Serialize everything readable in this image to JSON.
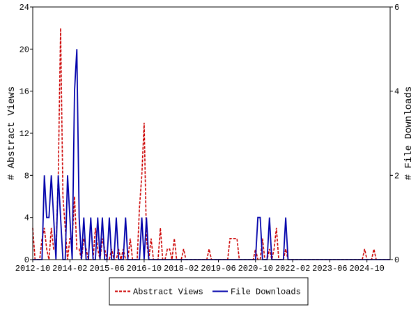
{
  "chart_data": {
    "type": "line",
    "x": [
      "2012-10",
      "2012-11",
      "2012-12",
      "2013-01",
      "2013-02",
      "2013-03",
      "2013-04",
      "2013-05",
      "2013-06",
      "2013-07",
      "2013-08",
      "2013-09",
      "2013-10",
      "2013-11",
      "2013-12",
      "2014-01",
      "2014-02",
      "2014-03",
      "2014-04",
      "2014-05",
      "2014-06",
      "2014-07",
      "2014-08",
      "2014-09",
      "2014-10",
      "2014-11",
      "2014-12",
      "2015-01",
      "2015-02",
      "2015-03",
      "2015-04",
      "2015-05",
      "2015-06",
      "2015-07",
      "2015-08",
      "2015-09",
      "2015-10",
      "2015-11",
      "2015-12",
      "2016-01",
      "2016-02",
      "2016-03",
      "2016-04",
      "2016-05",
      "2016-06",
      "2016-07",
      "2016-08",
      "2016-09",
      "2016-10",
      "2016-11",
      "2016-12",
      "2017-01",
      "2017-02",
      "2017-03",
      "2017-04",
      "2017-05",
      "2017-06",
      "2017-07",
      "2017-08",
      "2017-09",
      "2017-10",
      "2017-11",
      "2017-12",
      "2018-01",
      "2018-02",
      "2018-03",
      "2018-04",
      "2018-05",
      "2018-06",
      "2018-07",
      "2018-08",
      "2018-09",
      "2018-10",
      "2018-11",
      "2018-12",
      "2019-01",
      "2019-02",
      "2019-03",
      "2019-04",
      "2019-05",
      "2019-06",
      "2019-07",
      "2019-08",
      "2019-09",
      "2019-10",
      "2019-11",
      "2019-12",
      "2020-01",
      "2020-02",
      "2020-03",
      "2020-04",
      "2020-05",
      "2020-06",
      "2020-07",
      "2020-08",
      "2020-09",
      "2020-10",
      "2020-11",
      "2020-12",
      "2021-01",
      "2021-02",
      "2021-03",
      "2021-04",
      "2021-05",
      "2021-06",
      "2021-07",
      "2021-08",
      "2021-09",
      "2021-10",
      "2021-11",
      "2021-12",
      "2022-01",
      "2022-02",
      "2022-03",
      "2022-04",
      "2022-05",
      "2022-06",
      "2022-07",
      "2022-08",
      "2022-09",
      "2022-10",
      "2022-11",
      "2022-12",
      "2023-01",
      "2023-02",
      "2023-03",
      "2023-04",
      "2023-05",
      "2023-06",
      "2023-07",
      "2023-08",
      "2023-09",
      "2023-10",
      "2023-11",
      "2023-12",
      "2024-01",
      "2024-02",
      "2024-03",
      "2024-04",
      "2024-05",
      "2024-06",
      "2024-07",
      "2024-08",
      "2024-09",
      "2024-10",
      "2024-11",
      "2024-12",
      "2025-01",
      "2025-02",
      "2025-03",
      "2025-04",
      "2025-05",
      "2025-06",
      "2025-07",
      "2025-08"
    ],
    "xticks": [
      "2012-10",
      "2014-02",
      "2015-06",
      "2016-10",
      "2018-02",
      "2019-06",
      "2020-10",
      "2022-02",
      "2023-06",
      "2024-10"
    ],
    "ylabel": "# Abstract Views",
    "y2label": "# File Downloads",
    "ylim": [
      0,
      24
    ],
    "yticks": [
      0,
      4,
      8,
      12,
      16,
      20,
      24
    ],
    "y2lim": [
      0,
      6
    ],
    "y2ticks": [
      0,
      2,
      4,
      6
    ],
    "grid": false,
    "legend": "bottom",
    "series": [
      {
        "name": "Abstract Views",
        "color": "#cc0000",
        "dash": true,
        "values": [
          3,
          0,
          0,
          0,
          2,
          3,
          1,
          0,
          3,
          1,
          1,
          8,
          22,
          6,
          3,
          0,
          2,
          2,
          6,
          1,
          1,
          0,
          2,
          1,
          0,
          0,
          0,
          3,
          1,
          0,
          2,
          1,
          0,
          0,
          1,
          0,
          0,
          1,
          0,
          1,
          0,
          0,
          2,
          0,
          0,
          0,
          5,
          8,
          13,
          2,
          0,
          2,
          0,
          0,
          0,
          3,
          0,
          0,
          1,
          1,
          0,
          2,
          0,
          0,
          0,
          1,
          0,
          0,
          0,
          0,
          0,
          0,
          0,
          0,
          0,
          0,
          1,
          0,
          0,
          0,
          0,
          0,
          0,
          0,
          0,
          2,
          2,
          2,
          2,
          0,
          0,
          0,
          0,
          0,
          0,
          0,
          1,
          0,
          0,
          2,
          0,
          0,
          1,
          0,
          1,
          3,
          0,
          0,
          0,
          1,
          0,
          0,
          0,
          0,
          0,
          0,
          0,
          0,
          0,
          0,
          0,
          0,
          0,
          0,
          0,
          0,
          0,
          0,
          0,
          0,
          0,
          0,
          0,
          0,
          0,
          0,
          0,
          0,
          0,
          0,
          0,
          0,
          0,
          1,
          0,
          0,
          0,
          1,
          0,
          0,
          0,
          0,
          0,
          0,
          0
        ]
      },
      {
        "name": "File Downloads",
        "color": "#0000aa",
        "axis": "y2",
        "dash": false,
        "values": [
          0,
          0,
          0,
          0,
          0,
          2,
          1,
          1,
          2,
          1,
          0,
          2,
          1,
          0,
          0,
          2,
          1,
          0,
          4,
          5,
          1,
          0,
          1,
          0,
          0,
          1,
          0,
          0,
          1,
          0,
          1,
          0,
          0,
          1,
          0,
          0,
          1,
          0,
          0,
          0,
          1,
          0,
          0,
          0,
          0,
          0,
          0,
          1,
          0,
          1,
          0,
          0,
          0,
          0,
          0,
          0,
          0,
          0,
          0,
          0,
          0,
          0,
          0,
          0,
          0,
          0,
          0,
          0,
          0,
          0,
          0,
          0,
          0,
          0,
          0,
          0,
          0,
          0,
          0,
          0,
          0,
          0,
          0,
          0,
          0,
          0,
          0,
          0,
          0,
          0,
          0,
          0,
          0,
          0,
          0,
          0,
          0,
          1,
          1,
          0,
          0,
          0,
          1,
          0,
          0,
          0,
          0,
          0,
          0,
          1,
          0,
          0,
          0,
          0,
          0,
          0,
          0,
          0,
          0,
          0,
          0,
          0,
          0,
          0,
          0,
          0,
          0,
          0,
          0,
          0,
          0,
          0,
          0,
          0,
          0,
          0,
          0,
          0,
          0,
          0,
          0,
          0,
          0,
          0,
          0,
          0,
          0,
          0,
          0,
          0,
          0,
          0,
          0,
          0,
          0
        ]
      }
    ]
  }
}
